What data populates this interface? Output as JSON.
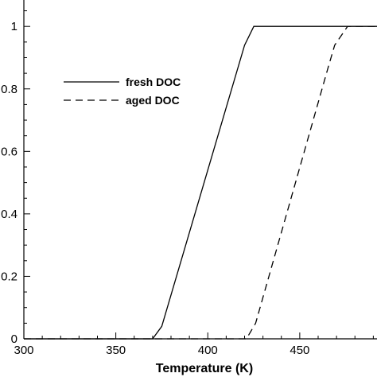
{
  "chart_data": {
    "type": "line",
    "xlabel": "Temperature (K)",
    "ylabel": "",
    "xlim": [
      300,
      492
    ],
    "ylim": [
      0,
      1.11
    ],
    "x_ticks": [
      300,
      350,
      400,
      450
    ],
    "y_ticks": [
      0,
      0.2,
      0.4,
      0.6,
      0.8,
      1
    ],
    "x_tick_labels": [
      "300",
      "350",
      "400",
      "450"
    ],
    "y_tick_labels": [
      "0",
      "0.2",
      "0.4",
      "0.6",
      "0.8",
      "1"
    ],
    "grid": false,
    "legend_position": "upper-left",
    "series": [
      {
        "name": "fresh DOC",
        "line_style": "solid",
        "color": "#000000",
        "x": [
          300,
          370,
          375,
          420,
          425,
          492
        ],
        "y": [
          0,
          0,
          0.04,
          0.94,
          1,
          1
        ]
      },
      {
        "name": "aged DOC",
        "line_style": "dashed",
        "color": "#000000",
        "x": [
          300,
          421,
          426,
          465,
          469,
          476,
          492
        ],
        "y": [
          0,
          0,
          0.05,
          0.86,
          0.94,
          1,
          1
        ]
      }
    ]
  }
}
